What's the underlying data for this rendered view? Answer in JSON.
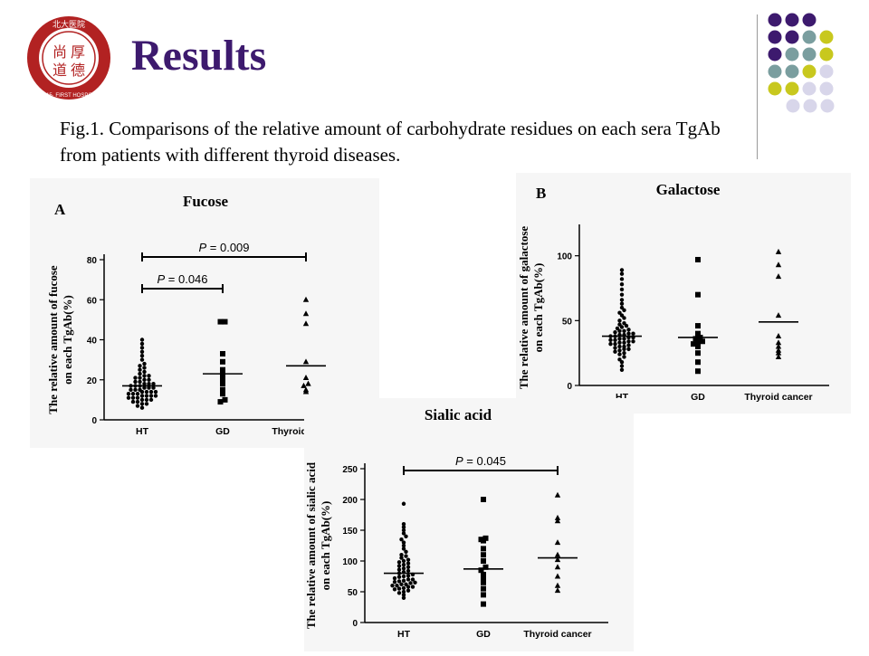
{
  "slide": {
    "title": "Results",
    "caption": "Fig.1. Comparisons of the relative amount of carbohydrate residues on each sera TgAb from patients with different thyroid diseases.",
    "logo": {
      "icon": "university-seal-icon",
      "text": "北大医院 PEKING UNIVERSITY FIRST HOSPITAL 1915 尚厚道德",
      "color": "#b22222"
    },
    "colors": {
      "title": "#3d1a6e",
      "purple": "#3d1a6e",
      "teal": "#7a9e9f",
      "yellow": "#c8c81e",
      "lavender": "#d8d6ea"
    }
  },
  "chart_data": [
    {
      "type": "scatter",
      "panel_label": "A",
      "title": "Fucose",
      "ylabel": "The relative amount of fucose on each TgAb(%)",
      "categories": [
        "HT",
        "GD",
        "Thyroid cancer"
      ],
      "ylim": [
        0,
        80
      ],
      "yticks": [
        0,
        20,
        40,
        60,
        80
      ],
      "markers": [
        "circle",
        "square",
        "triangle"
      ],
      "means": [
        17,
        23,
        27
      ],
      "series": [
        {
          "values": [
            6,
            7,
            8,
            8,
            9,
            9,
            10,
            10,
            10,
            11,
            11,
            11,
            12,
            12,
            12,
            12,
            13,
            13,
            13,
            14,
            14,
            14,
            14,
            15,
            15,
            15,
            16,
            16,
            16,
            17,
            17,
            17,
            18,
            18,
            18,
            19,
            19,
            20,
            20,
            21,
            21,
            22,
            22,
            23,
            24,
            25,
            26,
            27,
            28,
            30,
            32,
            34,
            36,
            38,
            40
          ]
        },
        {
          "values": [
            9,
            10,
            13,
            15,
            18,
            20,
            22,
            23,
            25,
            29,
            33,
            49,
            49
          ]
        },
        {
          "values": [
            14,
            15,
            17,
            18,
            21,
            29,
            48,
            53,
            60
          ]
        }
      ],
      "comparisons": [
        {
          "label": "P = 0.009",
          "from": "HT",
          "to": "Thyroid cancer"
        },
        {
          "label": "P = 0.046",
          "from": "HT",
          "to": "GD"
        }
      ]
    },
    {
      "type": "scatter",
      "panel_label": "B",
      "title": "Galactose",
      "ylabel": "The relative amount of galactose on each TgAb(%)",
      "categories": [
        "HT",
        "GD",
        "Thyroid cancer"
      ],
      "ylim": [
        0,
        120
      ],
      "yticks": [
        0,
        50,
        100
      ],
      "markers": [
        "circle",
        "square",
        "triangle"
      ],
      "means": [
        38,
        37,
        49
      ],
      "series": [
        {
          "values": [
            12,
            15,
            18,
            20,
            22,
            24,
            25,
            26,
            27,
            28,
            28,
            29,
            30,
            30,
            31,
            32,
            32,
            33,
            33,
            34,
            34,
            35,
            35,
            36,
            36,
            37,
            37,
            38,
            38,
            39,
            39,
            40,
            40,
            41,
            42,
            42,
            43,
            44,
            45,
            46,
            47,
            48,
            50,
            52,
            54,
            56,
            58,
            60,
            63,
            66,
            70,
            74,
            78,
            82,
            86,
            89
          ]
        },
        {
          "values": [
            11,
            18,
            25,
            30,
            32,
            33,
            34,
            36,
            37,
            40,
            46,
            70,
            97
          ]
        },
        {
          "values": [
            22,
            25,
            27,
            30,
            33,
            38,
            54,
            84,
            93,
            103
          ]
        }
      ]
    },
    {
      "type": "scatter",
      "title": "Sialic acid",
      "ylabel": "The relative amount of sialic acid on each TgAb(%)",
      "categories": [
        "HT",
        "GD",
        "Thyroid cancer"
      ],
      "ylim": [
        0,
        250
      ],
      "yticks": [
        0,
        50,
        100,
        150,
        200,
        250
      ],
      "markers": [
        "circle",
        "square",
        "triangle"
      ],
      "means": [
        80,
        87,
        105
      ],
      "series": [
        {
          "values": [
            40,
            45,
            48,
            50,
            52,
            54,
            55,
            56,
            58,
            58,
            60,
            60,
            62,
            62,
            64,
            65,
            66,
            67,
            68,
            70,
            70,
            72,
            74,
            75,
            76,
            78,
            80,
            82,
            84,
            86,
            88,
            90,
            92,
            94,
            96,
            98,
            100,
            102,
            105,
            108,
            110,
            115,
            120,
            125,
            130,
            135,
            140,
            145,
            150,
            155,
            160,
            193
          ]
        },
        {
          "values": [
            30,
            45,
            55,
            65,
            70,
            78,
            85,
            90,
            100,
            110,
            120,
            133,
            135,
            137,
            200
          ]
        },
        {
          "values": [
            52,
            60,
            75,
            90,
            102,
            110,
            130,
            165,
            170,
            207
          ]
        }
      ],
      "comparisons": [
        {
          "label": "P = 0.045",
          "from": "HT",
          "to": "Thyroid cancer"
        }
      ]
    }
  ]
}
